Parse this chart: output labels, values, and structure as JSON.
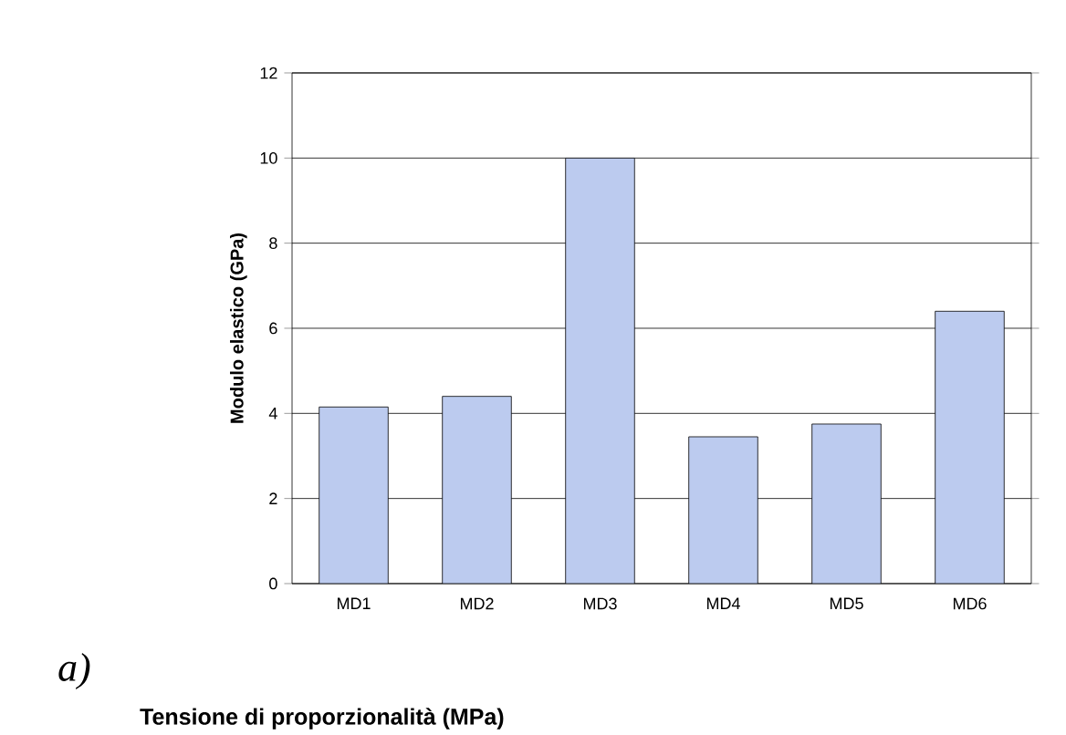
{
  "chart_data": {
    "type": "bar",
    "ylabel": "Modulo elastico (GPa)",
    "categories": [
      "MD1",
      "MD2",
      "MD3",
      "MD4",
      "MD5",
      "MD6"
    ],
    "values": [
      4.15,
      4.4,
      10.0,
      3.45,
      3.75,
      6.4
    ],
    "color": "#bccbef",
    "ylim": [
      0,
      12
    ],
    "yticks": [
      0,
      2,
      4,
      6,
      8,
      10,
      12
    ],
    "grid": "y",
    "annotations": [
      "a)",
      "Tensione di proporzionalità (MPa)"
    ]
  }
}
